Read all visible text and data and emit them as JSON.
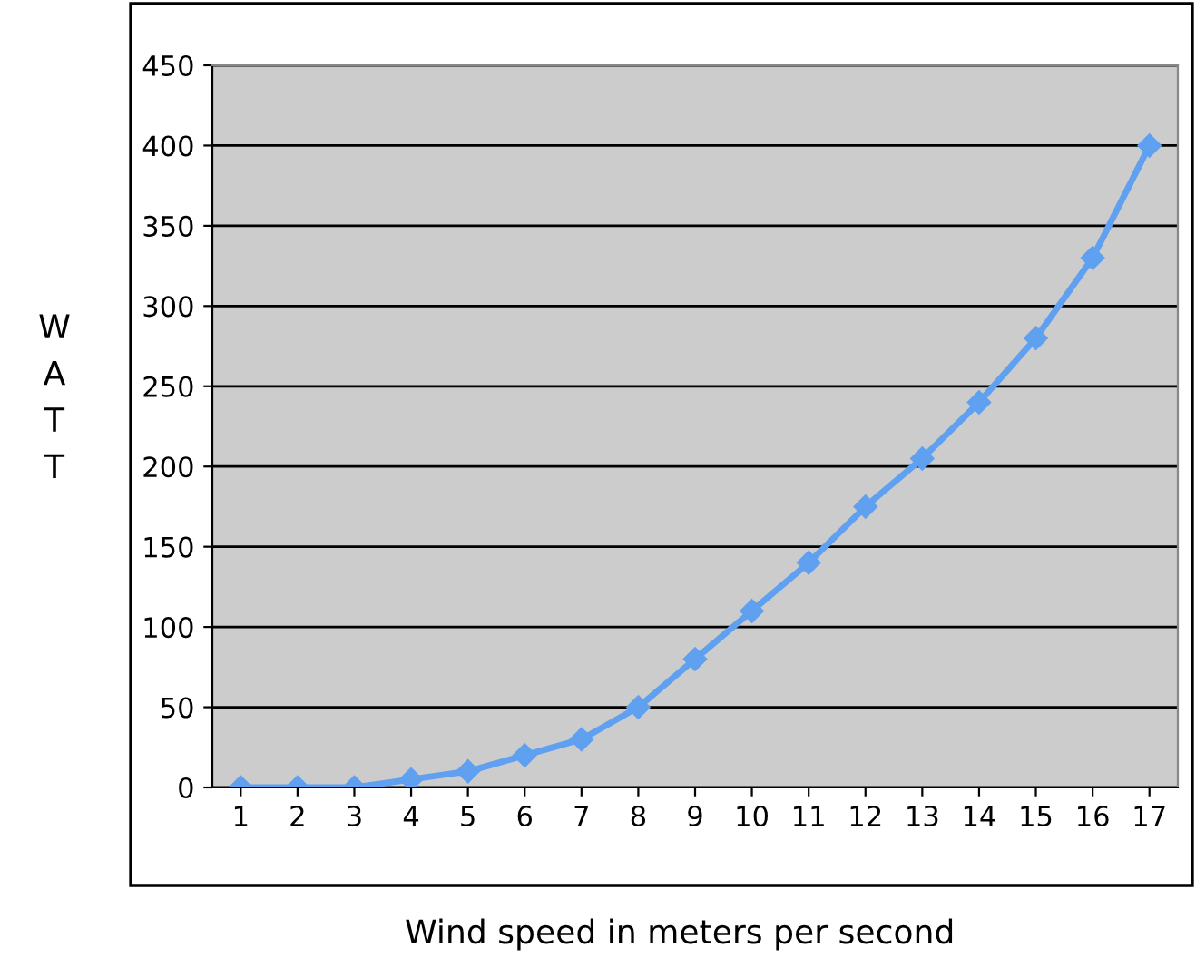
{
  "chart_data": {
    "type": "line",
    "xlabel": "Wind speed in meters per second",
    "ylabel": "WATT",
    "categories": [
      "1",
      "2",
      "3",
      "4",
      "5",
      "6",
      "7",
      "8",
      "9",
      "10",
      "11",
      "12",
      "13",
      "14",
      "15",
      "16",
      "17"
    ],
    "series": [
      {
        "color": "#5fa0f0",
        "values": [
          0,
          0,
          0,
          5,
          10,
          20,
          30,
          50,
          80,
          110,
          140,
          175,
          205,
          240,
          280,
          330,
          400
        ]
      }
    ],
    "ylim": [
      0,
      450
    ],
    "yticks": [
      0,
      50,
      100,
      150,
      200,
      250,
      300,
      350,
      400,
      450
    ],
    "grid": "y",
    "marker": "diamond",
    "line_style": "solid",
    "legend": false
  }
}
